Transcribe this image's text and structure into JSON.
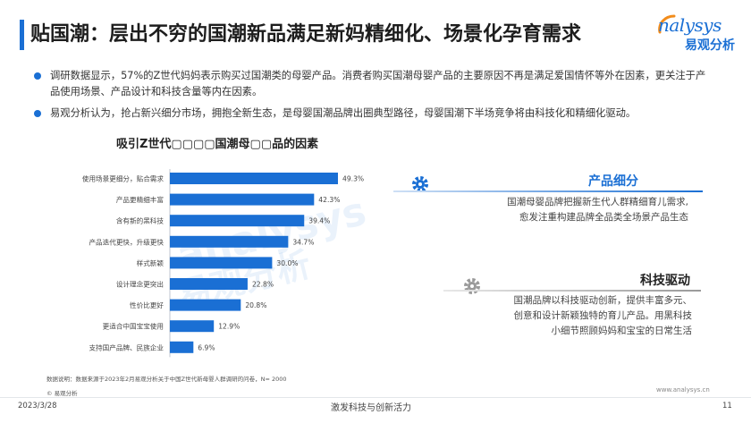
{
  "header": {
    "title": "贴国潮：层出不穷的国潮新品满足新妈精细化、场景化孕育需求",
    "logo_en": "nalysys",
    "logo_cn": "易观分析"
  },
  "bullets": [
    "调研数据显示，57%的Z世代妈妈表示购买过国潮类的母婴产品。消费者购买国潮母婴产品的主要原因不再是满足爱国情怀等外在因素，更关注于产品使用场景、产品设计和科技含量等内在因素。",
    "易观分析认为，抢占新兴细分市场，拥抱全新生态，是母婴国潮品牌出圈典型路径，母婴国潮下半场竞争将由科技化和精细化驱动。"
  ],
  "chart_title": "吸引Z世代▢▢▢▢国潮母▢▢品的因素",
  "chart_data": {
    "type": "bar",
    "orientation": "horizontal",
    "title": "吸引Z世代▢▢▢▢国潮母▢▢品的因素",
    "categories": [
      "使用场景更细分，贴合需求",
      "产品更精细丰富",
      "含有新的黑科技",
      "产品迭代更快，升级更快",
      "样式新颖",
      "设计理念更突出",
      "性价比更好",
      "更适合中国宝宝使用",
      "支持国产品牌、民族企业"
    ],
    "values": [
      49.3,
      42.3,
      39.4,
      34.7,
      30.0,
      22.8,
      20.8,
      12.9,
      6.9
    ],
    "value_labels": [
      "49.3%",
      "42.3%",
      "39.4%",
      "34.7%",
      "30.0%",
      "22.8%",
      "20.8%",
      "12.9%",
      "6.9%"
    ],
    "xlim": [
      0,
      60
    ],
    "bar_color": "#1a6fd4",
    "grid": false,
    "legend": "none"
  },
  "watermark": {
    "line1": "analysys",
    "line2": "易观分析"
  },
  "cards": [
    {
      "heading": "产品细分",
      "lines": [
        "国潮母婴品牌把握新生代人群精细育儿需求,",
        "愈发注重构建品牌全品类全场景产品生态"
      ]
    },
    {
      "heading": "科技驱动",
      "lines": [
        "国潮品牌以科技驱动创新，提供丰富多元、",
        "创意和设计新颖独特的育儿产品。用黑科技",
        "小细节照顾妈妈和宝宝的日常生活"
      ]
    }
  ],
  "footer": {
    "note": "数据说明：数据来源于2023年2月易观分析关于中国Z世代新母婴人群调研的问卷，N= 2000",
    "copyright": "© 易观分析",
    "url": "www.analysys.cn",
    "date": "2023/3/28",
    "slogan": "激发科技与创新活力",
    "page": "11"
  },
  "colors": {
    "accent": "#1a6fd4",
    "accent_light": "#8fb4e6"
  }
}
